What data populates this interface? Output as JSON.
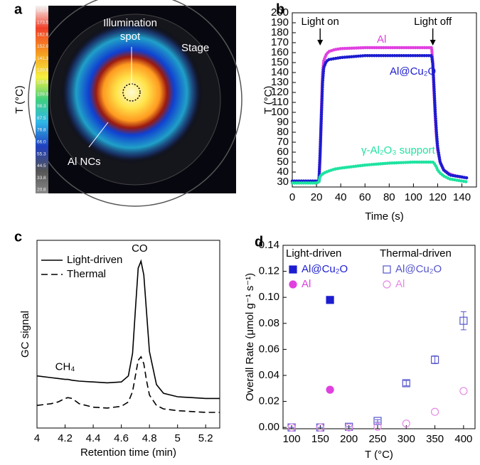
{
  "image": {
    "panel_label": "a",
    "colorbar_label": "T (°C)",
    "colorbar_ticks": [
      "182.4",
      "173.5",
      "162.8",
      "152.0",
      "141.3",
      "130.5",
      "119.8",
      "109.0",
      "98.3",
      "87.5",
      "76.8",
      "66.0",
      "55.3",
      "44.5",
      "33.8",
      "20.8"
    ],
    "spot_label": [
      "Illumination",
      "spot"
    ],
    "stage_label": "Stage",
    "sample_label": "Al NCs"
  },
  "chart_data": [
    {
      "type": "line",
      "panel_label": "b",
      "xlabel": "Time (s)",
      "ylabel": "T (°C)",
      "x": [
        0,
        10,
        20,
        22,
        23,
        24,
        25,
        26,
        28,
        30,
        35,
        40,
        60,
        80,
        100,
        115,
        116,
        117,
        118,
        119,
        120,
        122,
        125,
        130,
        135,
        140,
        145
      ],
      "series": [
        {
          "name": "Al",
          "color": "#e040e0",
          "values": [
            30,
            30,
            30,
            30,
            55,
            100,
            140,
            152,
            158,
            161,
            163,
            164,
            165,
            165,
            165,
            165,
            150,
            120,
            95,
            75,
            62,
            50,
            42,
            38,
            36,
            35,
            34
          ]
        },
        {
          "name": "Al@Cu₂O",
          "color": "#1c1cd0",
          "values": [
            31,
            31,
            31,
            31,
            60,
            95,
            130,
            145,
            151,
            153,
            154,
            155,
            157,
            157,
            157,
            157,
            148,
            125,
            100,
            80,
            65,
            50,
            42,
            37,
            36,
            35,
            34
          ]
        },
        {
          "name": "γ-Al₂O₃ support",
          "color": "#1ee3a0",
          "values": [
            29,
            29,
            29,
            30,
            36,
            37,
            38,
            39,
            40,
            41,
            43,
            44,
            47,
            49,
            50,
            50,
            50,
            49,
            47,
            45,
            42,
            39,
            36,
            33,
            32,
            31,
            30
          ]
        }
      ],
      "annotations": [
        {
          "text": "Light on",
          "x": 23
        },
        {
          "text": "Light off",
          "x": 116
        }
      ],
      "xlim": [
        0,
        152
      ],
      "xticks": [
        0,
        20,
        40,
        60,
        80,
        100,
        120,
        140
      ],
      "ylim": [
        25,
        200
      ],
      "yticks": [
        30,
        40,
        50,
        60,
        70,
        80,
        90,
        100,
        110,
        120,
        130,
        140,
        150,
        160,
        170,
        180,
        190,
        200
      ]
    },
    {
      "type": "line",
      "panel_label": "c",
      "xlabel": "Retention time (min)",
      "ylabel": "GC signal",
      "x": [
        4,
        4.1,
        4.15,
        4.2,
        4.22,
        4.25,
        4.3,
        4.4,
        4.5,
        4.6,
        4.65,
        4.68,
        4.7,
        4.72,
        4.74,
        4.76,
        4.78,
        4.8,
        4.85,
        4.9,
        5,
        5.1,
        5.2,
        5.3
      ],
      "series": [
        {
          "name": "Light-driven",
          "color": "#000000",
          "dash": "solid",
          "values": [
            2.2,
            2.1,
            2.05,
            2.0,
            2.0,
            1.95,
            1.9,
            1.85,
            1.8,
            1.85,
            2.2,
            3.5,
            6.0,
            8.4,
            8.8,
            8.0,
            5.8,
            3.6,
            1.7,
            1.2,
            1.0,
            0.95,
            0.9,
            0.9
          ]
        },
        {
          "name": "Thermal",
          "color": "#000000",
          "dash": "dashed",
          "values": [
            0.5,
            0.6,
            0.7,
            0.9,
            0.95,
            0.9,
            0.6,
            0.4,
            0.35,
            0.45,
            0.7,
            1.3,
            2.2,
            3.1,
            3.3,
            2.9,
            1.9,
            1.1,
            0.5,
            0.3,
            0.2,
            0.15,
            0.1,
            0.1
          ]
        }
      ],
      "annotations": [
        {
          "text": "CO",
          "x": 4.73,
          "y": 9.5
        },
        {
          "text": "CH₄",
          "x": 4.2,
          "y": 2.7
        }
      ],
      "legend": "upper left",
      "xlim": [
        4,
        5.3
      ],
      "xticks": [
        4,
        4.2,
        4.4,
        4.6,
        4.8,
        5,
        5.2
      ],
      "ylim": [
        -0.8,
        10
      ]
    },
    {
      "type": "scatter",
      "panel_label": "d",
      "xlabel": "T (°C)",
      "ylabel": "Overall Rate (μmol g⁻¹ s⁻¹)",
      "legend_groups": [
        "Light-driven",
        "Thermal-driven"
      ],
      "series": [
        {
          "name": "Al@Cu₂O",
          "group": 0,
          "marker": "square",
          "filled": true,
          "color": "#1c1cd0",
          "x": [
            167
          ],
          "values": [
            0.098
          ]
        },
        {
          "name": "Al",
          "group": 0,
          "marker": "circle",
          "filled": true,
          "color": "#e040e0",
          "x": [
            167
          ],
          "values": [
            0.029
          ]
        },
        {
          "name": "Al@Cu₂O",
          "group": 1,
          "marker": "square",
          "filled": false,
          "color": "#5555cc",
          "x": [
            100,
            150,
            200,
            250,
            300,
            350,
            400
          ],
          "values": [
            0,
            0,
            0.0005,
            0.005,
            0.034,
            0.052,
            0.082
          ],
          "errors": [
            0,
            0,
            0,
            0.001,
            0.002,
            0.003,
            0.007
          ]
        },
        {
          "name": "Al",
          "group": 1,
          "marker": "circle",
          "filled": false,
          "color": "#e58ae5",
          "x": [
            100,
            150,
            200,
            250,
            300,
            350,
            400
          ],
          "values": [
            0,
            0,
            0,
            0.0005,
            0.003,
            0.012,
            0.028
          ]
        }
      ],
      "xlim": [
        85,
        420
      ],
      "xticks": [
        100,
        150,
        200,
        250,
        300,
        350,
        400
      ],
      "ylim": [
        -0.001,
        0.14
      ],
      "yticks": [
        {
          "value": 0,
          "label": "0.00"
        },
        {
          "value": 0.02,
          "label": "0.02"
        },
        {
          "value": 0.04,
          "label": "0.04"
        },
        {
          "value": 0.06,
          "label": "0.06"
        },
        {
          "value": 0.08,
          "label": "0.08"
        },
        {
          "value": 0.1,
          "label": "0.10"
        },
        {
          "value": 0.12,
          "label": "0.12"
        },
        {
          "value": 0.14,
          "label": "0.14"
        }
      ]
    }
  ]
}
